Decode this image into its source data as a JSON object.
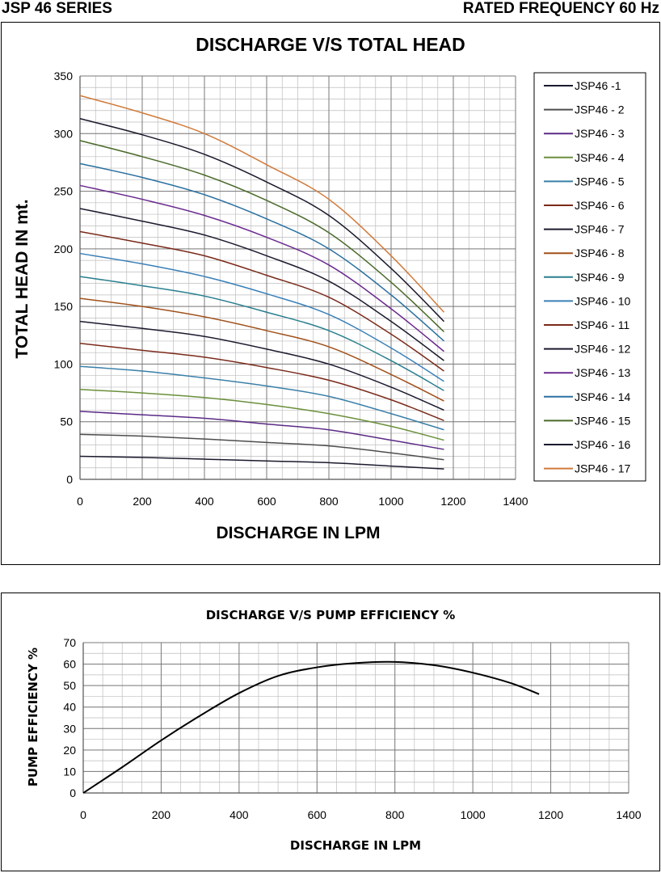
{
  "header": {
    "left": "JSP 46 SERIES",
    "right": "RATED FREQUENCY 60 Hz"
  },
  "chart_data": [
    {
      "type": "line",
      "title": "DISCHARGE V/S TOTAL HEAD",
      "xlabel": "DISCHARGE IN LPM",
      "ylabel": "TOTAL HEAD IN mt.",
      "xlim": [
        0,
        1400
      ],
      "ylim": [
        0,
        350
      ],
      "x_ticks": [
        "0",
        "200",
        "400",
        "600",
        "800",
        "1000",
        "1200",
        "1400"
      ],
      "y_ticks": [
        "0",
        "50",
        "100",
        "150",
        "200",
        "250",
        "300",
        "350"
      ],
      "grid": true,
      "legend": "right",
      "x": [
        0,
        200,
        400,
        600,
        800,
        1000,
        1170
      ],
      "series": [
        {
          "name": "JSP46 -1",
          "color": "#1a1a2e",
          "values": [
            20,
            19,
            17.5,
            16,
            14.5,
            11.5,
            9
          ]
        },
        {
          "name": "JSP46 - 2",
          "color": "#4d4d4d",
          "values": [
            39,
            37.5,
            35,
            32,
            29,
            23,
            17
          ]
        },
        {
          "name": "JSP46 - 3",
          "color": "#5b2a86",
          "values": [
            59,
            56,
            53,
            48,
            43,
            34,
            26
          ]
        },
        {
          "name": "JSP46 - 4",
          "color": "#6a8f3a",
          "values": [
            78,
            75,
            71,
            65,
            57,
            46,
            34
          ]
        },
        {
          "name": "JSP46 - 5",
          "color": "#3a7fa8",
          "values": [
            98,
            94,
            88,
            81,
            72,
            57,
            43
          ]
        },
        {
          "name": "JSP46 - 6",
          "color": "#7a2a1a",
          "values": [
            118,
            112,
            106,
            97,
            86,
            69,
            51
          ]
        },
        {
          "name": "JSP46 - 7",
          "color": "#1a1a2e",
          "values": [
            137,
            131,
            124,
            113,
            100,
            80,
            60
          ]
        },
        {
          "name": "JSP46 - 8",
          "color": "#a0501a",
          "values": [
            157,
            150,
            141,
            129,
            115,
            91,
            68
          ]
        },
        {
          "name": "JSP46 - 9",
          "color": "#2a7f8f",
          "values": [
            176,
            168,
            159,
            145,
            129,
            103,
            77
          ]
        },
        {
          "name": "JSP46 - 10",
          "color": "#3a80b8",
          "values": [
            196,
            187,
            176,
            161,
            143,
            114,
            85
          ]
        },
        {
          "name": "JSP46 - 11",
          "color": "#7a2a1a",
          "values": [
            215,
            205,
            194,
            177,
            158,
            126,
            94
          ]
        },
        {
          "name": "JSP46 - 12",
          "color": "#1a1a2e",
          "values": [
            235,
            224,
            212,
            194,
            172,
            137,
            103
          ]
        },
        {
          "name": "JSP46 - 13",
          "color": "#6a2a8f",
          "values": [
            255,
            243,
            229,
            210,
            186,
            148,
            111
          ]
        },
        {
          "name": "JSP46 - 14",
          "color": "#2a70a0",
          "values": [
            274,
            262,
            247,
            226,
            200,
            160,
            120
          ]
        },
        {
          "name": "JSP46 - 15",
          "color": "#4a6a2a",
          "values": [
            294,
            280,
            264,
            242,
            214,
            171,
            128
          ]
        },
        {
          "name": "JSP46 - 16",
          "color": "#1a1a2e",
          "values": [
            313,
            299,
            282,
            258,
            229,
            183,
            137
          ]
        },
        {
          "name": "JSP46 - 17",
          "color": "#d07a3a",
          "values": [
            333,
            318,
            300,
            273,
            243,
            194,
            145
          ]
        }
      ]
    },
    {
      "type": "line",
      "title": "DISCHARGE V/S PUMP EFFICIENCY %",
      "xlabel": "DISCHARGE IN LPM",
      "ylabel": "PUMP EFFICIENCY %",
      "xlim": [
        0,
        1400
      ],
      "ylim": [
        0,
        70
      ],
      "x_ticks": [
        "0",
        "200",
        "400",
        "600",
        "800",
        "1000",
        "1200",
        "1400"
      ],
      "y_ticks": [
        "0",
        "10",
        "20",
        "30",
        "40",
        "50",
        "60",
        "70"
      ],
      "grid": true,
      "x": [
        0,
        100,
        200,
        300,
        400,
        500,
        600,
        700,
        800,
        900,
        1000,
        1100,
        1170
      ],
      "series": [
        {
          "color": "#000000",
          "values": [
            0,
            12,
            24.5,
            36,
            46.5,
            54.5,
            58.5,
            60.5,
            61,
            59.5,
            56,
            51,
            46
          ]
        }
      ]
    }
  ]
}
